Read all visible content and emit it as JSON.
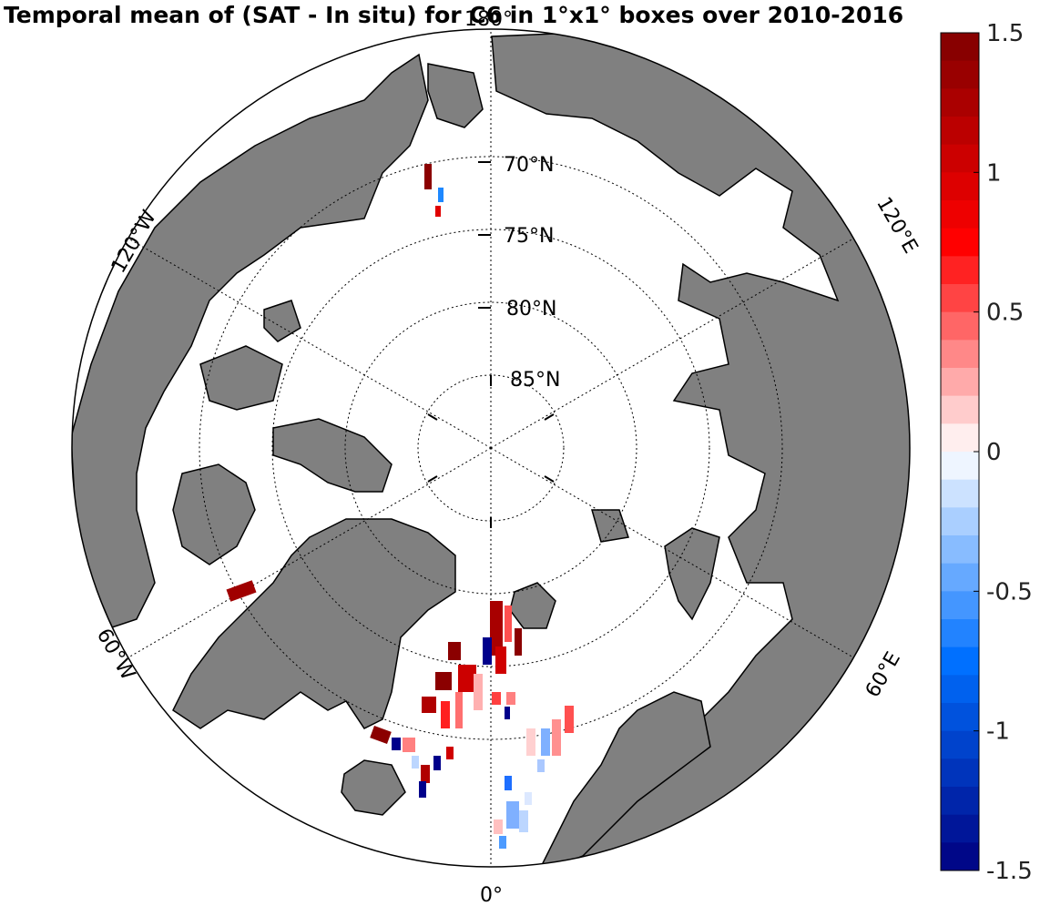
{
  "title": "Temporal mean of (SAT - In situ) for C6 in 1°x1° boxes over 2010-2016",
  "latitude_labels": [
    "70oN",
    "75oN",
    "80oN",
    "85oN"
  ],
  "longitude_labels": {
    "top": "180o",
    "bottom": "0o",
    "upper_left": "120oW",
    "lower_left": "60oW",
    "upper_right": "120oE",
    "lower_right": "60oE"
  },
  "colorbar": {
    "ticks": [
      "1.5",
      "1",
      "0.5",
      "0",
      "-0.5",
      "-1",
      "-1.5"
    ],
    "range": [
      -1.5,
      1.5
    ],
    "levels": 30,
    "colors": {
      "min": "#00007f",
      "mid_low": "#0070ff",
      "zero": "#ffffff",
      "mid_high": "#ff0000",
      "max": "#7f0000"
    }
  },
  "colors": {
    "land": "#808080",
    "ocean": "#ffffff",
    "coastline": "#000000",
    "grid": "#000000"
  }
}
